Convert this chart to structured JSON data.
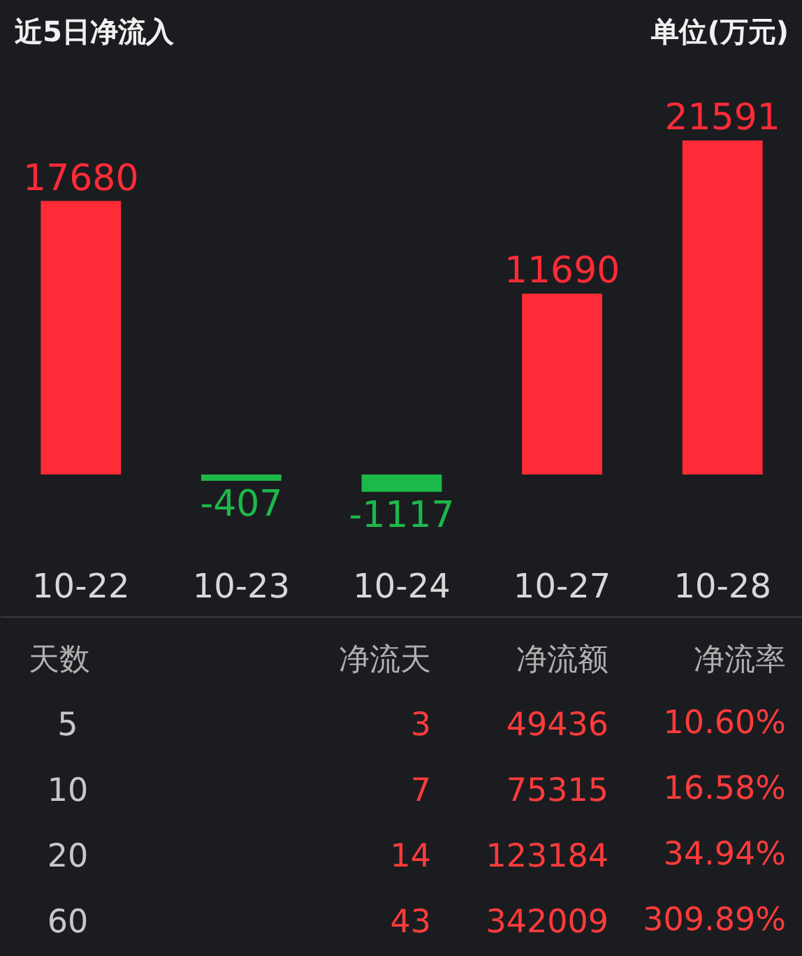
{
  "chart_data": [
    {
      "type": "bar",
      "title": "近5日净流入",
      "annotations": [
        "单位(万元)"
      ],
      "categories": [
        "10-22",
        "10-23",
        "10-24",
        "10-27",
        "10-28"
      ],
      "values": [
        17680,
        -407,
        -1117,
        11690,
        21591
      ],
      "colors": [
        "#ff2b36",
        "#1db84a",
        "#1db84a",
        "#ff2b36",
        "#ff2b36"
      ],
      "data_labels": true
    },
    {
      "type": "other",
      "categories": [
        "天数",
        "净流天",
        "净流额",
        "净流率"
      ],
      "cell_labels": [
        [
          "5",
          "3",
          "49436",
          "10.60%"
        ],
        [
          "10",
          "7",
          "75315",
          "16.58%"
        ],
        [
          "20",
          "14",
          "123184",
          "34.94%"
        ],
        [
          "60",
          "43",
          "342009",
          "309.89%"
        ]
      ]
    }
  ]
}
